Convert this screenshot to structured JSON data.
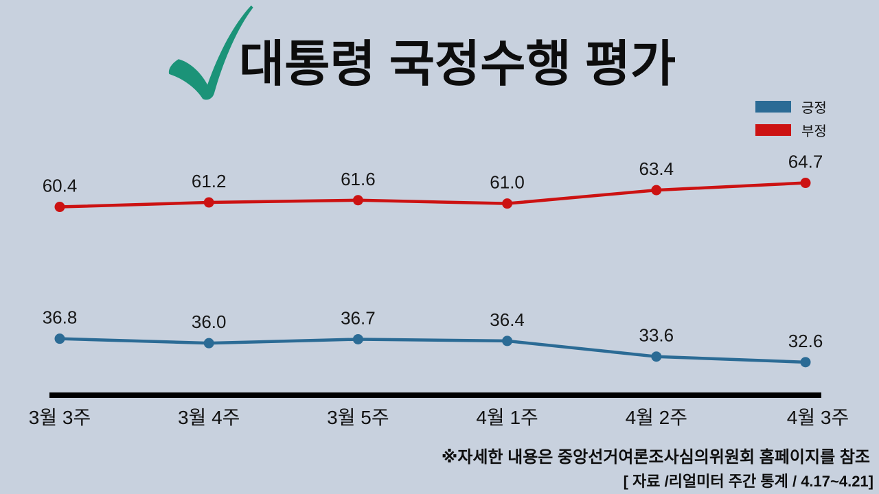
{
  "page": {
    "background_color": "#c8d1de",
    "text_color": "#0d0d0d"
  },
  "header": {
    "title": "대통령 국정수행 평가",
    "check_icon_color": "#1b9378"
  },
  "legend": {
    "items": [
      {
        "label": "긍정",
        "color": "#2b6b95"
      },
      {
        "label": "부정",
        "color": "#cc1212"
      }
    ]
  },
  "chart_data": {
    "type": "line",
    "title": "대통령 국정수행 평가",
    "categories": [
      "3월 3주",
      "3월 4주",
      "3월 5주",
      "4월 1주",
      "4월 2주",
      "4월 3주"
    ],
    "series": [
      {
        "name": "부정",
        "color": "#cc1212",
        "values": [
          60.4,
          61.2,
          61.6,
          61.0,
          63.4,
          64.7
        ]
      },
      {
        "name": "긍정",
        "color": "#2b6b95",
        "values": [
          36.8,
          36.0,
          36.7,
          36.4,
          33.6,
          32.6
        ]
      }
    ],
    "ylim": [
      20,
      75
    ],
    "xlabel": "",
    "ylabel": "",
    "grid": false,
    "legend_position": "top-right",
    "value_labels_shown": true,
    "axis_line_color": "#000000",
    "label_color": "#111111"
  },
  "footnotes": {
    "line1": "※자세한 내용은 중앙선거여론조사심의위원회 홈페이지를 참조",
    "line2": "[ 자료 /리얼미터 주간 통계 / 4.17~4.21]"
  }
}
